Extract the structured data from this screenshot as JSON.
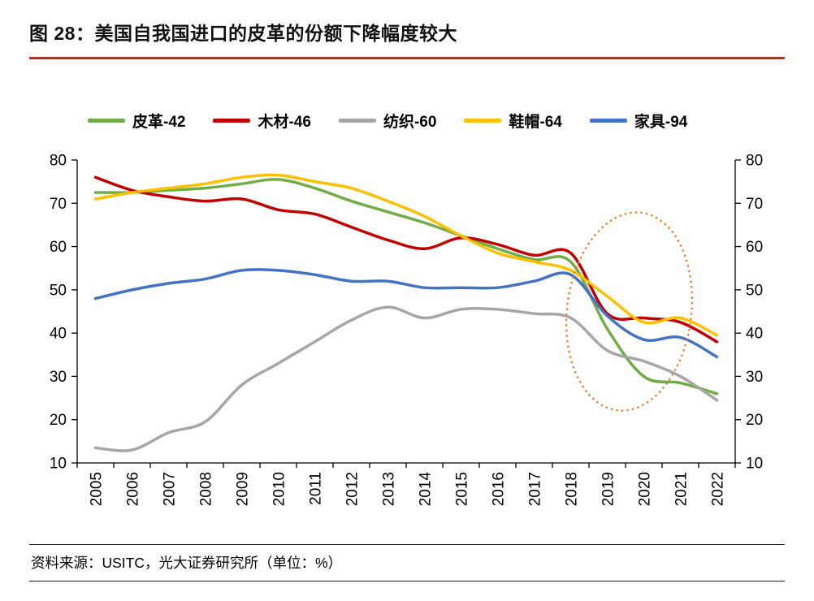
{
  "page": {
    "title": "图 28：美国自我国进口的皮革的份额下降幅度较大",
    "accent_color": "#A33B22",
    "source_note": "资料来源：USITC，光大证券研究所（单位：%）"
  },
  "chart_data": {
    "type": "line",
    "title": "",
    "xlabel": "",
    "ylabel": "",
    "unit": "%",
    "x": [
      "2005",
      "2006",
      "2007",
      "2008",
      "2009",
      "2010",
      "2011",
      "2012",
      "2013",
      "2014",
      "2015",
      "2016",
      "2017",
      "2018",
      "2019",
      "2020",
      "2021",
      "2022"
    ],
    "ylim": [
      10,
      80
    ],
    "ytick_step": 10,
    "grid": false,
    "legend_position": "top",
    "axis_color": "#000000",
    "series": [
      {
        "name": "皮革-42",
        "color": "#70AD47",
        "values": [
          72.5,
          72.5,
          73,
          73.5,
          74.5,
          75.5,
          73.5,
          70.5,
          68,
          65.5,
          62.5,
          59.5,
          57,
          56.5,
          41,
          30,
          28.5,
          26
        ]
      },
      {
        "name": "木材-46",
        "color": "#C00000",
        "values": [
          76,
          73,
          71.5,
          70.5,
          71,
          68.5,
          67.5,
          64.5,
          61.5,
          59.5,
          62,
          60.5,
          58,
          58.5,
          44.5,
          43.5,
          42.5,
          38
        ]
      },
      {
        "name": "纺织-60",
        "color": "#A6A6A6",
        "values": [
          13.5,
          13,
          17,
          19.5,
          28,
          33,
          38,
          43,
          46,
          43.5,
          45.5,
          45.5,
          44.5,
          43.5,
          36,
          33.5,
          30,
          24.5
        ]
      },
      {
        "name": "鞋帽-64",
        "color": "#FFC000",
        "values": [
          71,
          72.5,
          73.5,
          74.5,
          76,
          76.5,
          75,
          73.5,
          70.5,
          67,
          62.5,
          58.5,
          56.5,
          54.5,
          48.5,
          42.5,
          43.5,
          39.5
        ]
      },
      {
        "name": "家具-94",
        "color": "#4472C4",
        "values": [
          48,
          50,
          51.5,
          52.5,
          54.5,
          54.5,
          53.5,
          52,
          52,
          50.5,
          50.5,
          50.5,
          52,
          53.5,
          44,
          38.5,
          39,
          34.5
        ]
      }
    ],
    "annotation_ellipse": {
      "color": "#ED7D31",
      "center_x_year": 2019.6,
      "center_value": 45,
      "rx_years": 1.7,
      "ry_values": 23,
      "rotation_deg": 7
    }
  }
}
